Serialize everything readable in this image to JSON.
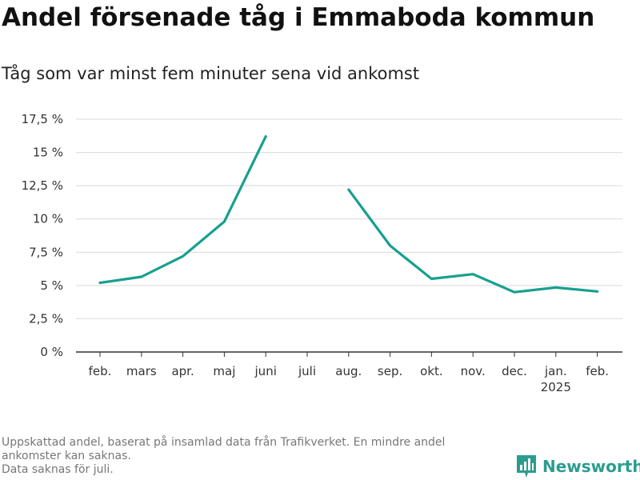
{
  "header": {
    "title": "Andel försenade tåg i Emmaboda kommun",
    "subtitle": "Tåg som var minst fem minuter sena vid ankomst"
  },
  "footer": {
    "notes": [
      "Uppskattad andel, baserat på insamlad data från Trafikverket. En mindre andel ankomster kan saknas.",
      "Data saknas för juli."
    ]
  },
  "brand": {
    "name": "Newsworthy",
    "icon": "bar-chart-logo-icon",
    "color": "#2a9d8f"
  },
  "chart_data": {
    "type": "line",
    "title": "Andel försenade tåg i Emmaboda kommun",
    "subtitle": "Tåg som var minst fem minuter sena vid ankomst",
    "xlabel": "",
    "ylabel": "",
    "categories": [
      "feb.",
      "mars",
      "apr.",
      "maj",
      "juni",
      "juli",
      "aug.",
      "sep.",
      "okt.",
      "nov.",
      "dec.",
      "jan.",
      "feb."
    ],
    "category_sublabels": [
      "",
      "",
      "",
      "",
      "",
      "",
      "",
      "",
      "",
      "",
      "",
      "2025",
      ""
    ],
    "series": [
      {
        "values": [
          5.2,
          5.65,
          7.2,
          9.8,
          16.2,
          null,
          12.2,
          8.0,
          5.5,
          5.85,
          4.5,
          4.85,
          4.55
        ],
        "color": "#16a08f"
      }
    ],
    "ylim": [
      0,
      17.5
    ],
    "yticks": [
      0,
      2.5,
      5,
      7.5,
      10,
      12.5,
      15,
      17.5
    ],
    "ytick_labels": [
      "0 %",
      "2,5 %",
      "5 %",
      "7,5 %",
      "10 %",
      "12,5 %",
      "15 %",
      "17,5 %"
    ],
    "grid": true,
    "legend": "none"
  }
}
